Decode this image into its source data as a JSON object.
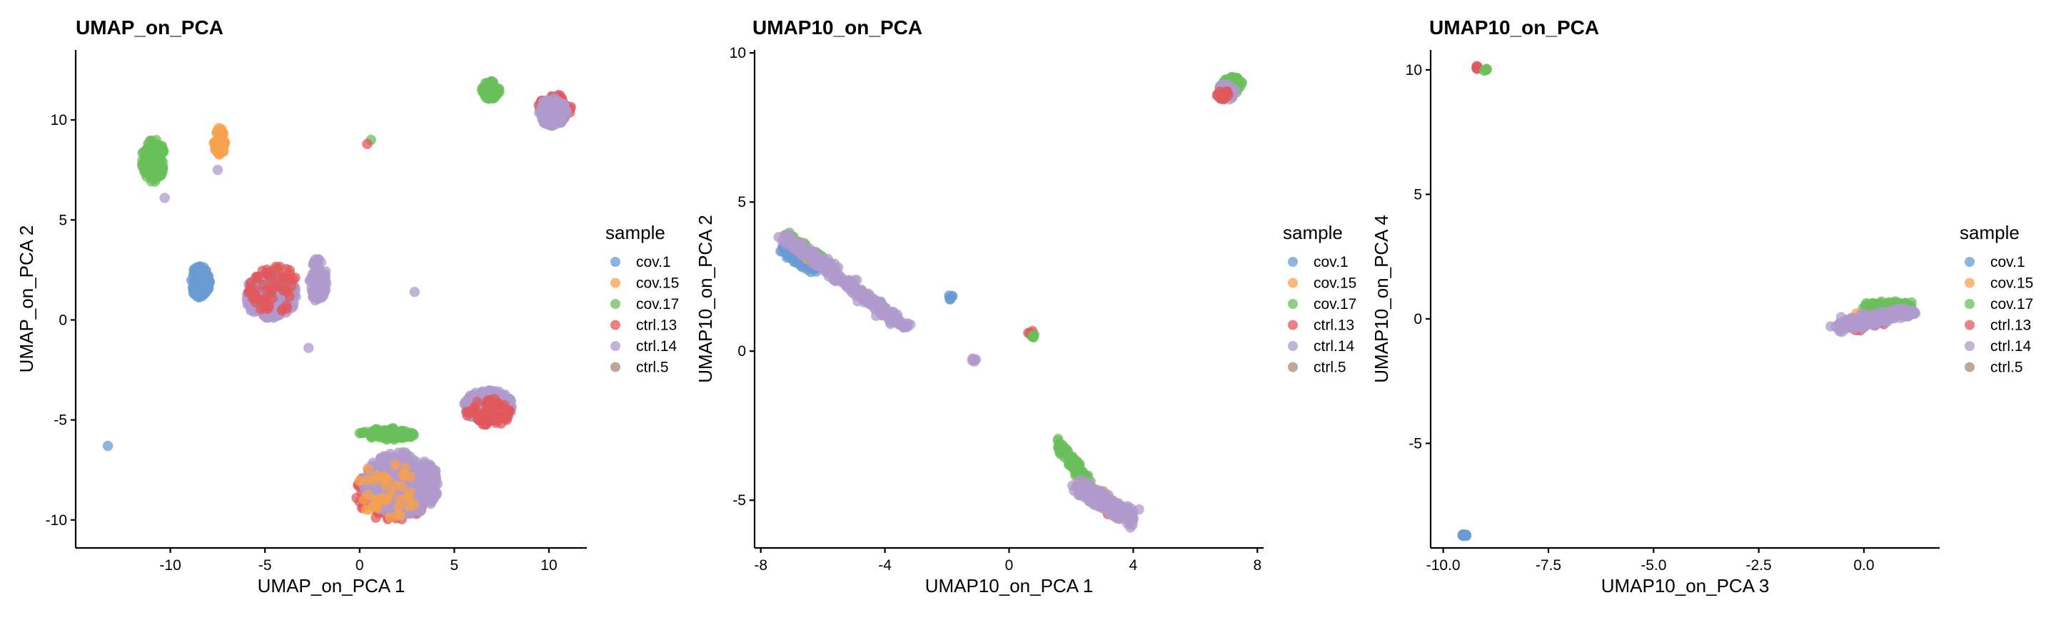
{
  "legend": {
    "title": "sample",
    "entries": [
      {
        "label": "cov.1",
        "color": "#6a9bd1"
      },
      {
        "label": "cov.15",
        "color": "#f7a24f"
      },
      {
        "label": "cov.17",
        "color": "#69bf5a"
      },
      {
        "label": "ctrl.13",
        "color": "#e0585b"
      },
      {
        "label": "ctrl.14",
        "color": "#b09acc"
      },
      {
        "label": "ctrl.5",
        "color": "#a98a74"
      }
    ]
  },
  "chart_data": [
    {
      "type": "scatter",
      "title": "UMAP_on_PCA",
      "xlabel": "UMAP_on_PCA 1",
      "ylabel": "UMAP_on_PCA 2",
      "xlim": [
        -15,
        12
      ],
      "ylim": [
        -11.4,
        13.5
      ],
      "xticks": [
        -10,
        -5,
        0,
        5,
        10
      ],
      "yticks": [
        -10,
        -5,
        0,
        5,
        10
      ],
      "xtick_labels": [
        "-10",
        "-5",
        "0",
        "5",
        "10"
      ],
      "ytick_labels": [
        "-10",
        "-5",
        "0",
        "5",
        "10"
      ],
      "grid": false,
      "legend_position": "right",
      "clusters": [
        {
          "sample": "cov.17",
          "cx": -10.9,
          "cy": 8.0,
          "rx": 0.6,
          "ry": 1.1,
          "n": 150
        },
        {
          "sample": "cov.15",
          "cx": -7.4,
          "cy": 8.9,
          "rx": 0.3,
          "ry": 0.7,
          "n": 60
        },
        {
          "sample": "cov.1",
          "cx": -8.4,
          "cy": 1.9,
          "rx": 0.55,
          "ry": 0.8,
          "n": 120
        },
        {
          "sample": "ctrl.14",
          "cx": -4.7,
          "cy": 1.2,
          "rx": 1.4,
          "ry": 1.1,
          "n": 260
        },
        {
          "sample": "ctrl.14",
          "cx": -2.2,
          "cy": 2.0,
          "rx": 0.45,
          "ry": 1.1,
          "n": 80
        },
        {
          "sample": "ctrl.13",
          "cx": -4.5,
          "cy": 1.5,
          "rx": 1.4,
          "ry": 1.2,
          "n": 60
        },
        {
          "sample": "cov.17",
          "cx": 6.9,
          "cy": 11.5,
          "rx": 0.5,
          "ry": 0.45,
          "n": 60
        },
        {
          "sample": "ctrl.13",
          "cx": 10.3,
          "cy": 10.6,
          "rx": 0.9,
          "ry": 0.7,
          "n": 80
        },
        {
          "sample": "ctrl.14",
          "cx": 10.2,
          "cy": 10.4,
          "rx": 0.8,
          "ry": 0.7,
          "n": 140
        },
        {
          "sample": "cov.17",
          "cx": 1.4,
          "cy": -5.7,
          "rx": 1.5,
          "ry": 0.3,
          "n": 80
        },
        {
          "sample": "ctrl.13",
          "cx": 1.8,
          "cy": -8.6,
          "rx": 2.0,
          "ry": 1.5,
          "n": 180
        },
        {
          "sample": "ctrl.14",
          "cx": 2.2,
          "cy": -8.2,
          "rx": 2.0,
          "ry": 1.6,
          "n": 380
        },
        {
          "sample": "cov.15",
          "cx": 1.5,
          "cy": -8.5,
          "rx": 1.7,
          "ry": 1.4,
          "n": 40
        },
        {
          "sample": "ctrl.14",
          "cx": 6.8,
          "cy": -4.3,
          "rx": 1.3,
          "ry": 0.8,
          "n": 220
        },
        {
          "sample": "ctrl.13",
          "cx": 6.8,
          "cy": -4.6,
          "rx": 1.2,
          "ry": 0.7,
          "n": 60
        }
      ],
      "singles": [
        {
          "sample": "cov.1",
          "x": -13.3,
          "y": -6.3
        },
        {
          "sample": "cov.17",
          "x": 0.6,
          "y": 9.0
        },
        {
          "sample": "ctrl.13",
          "x": 0.4,
          "y": 8.8
        },
        {
          "sample": "ctrl.14",
          "x": 2.9,
          "y": 1.4
        },
        {
          "sample": "ctrl.14",
          "x": -2.7,
          "y": -1.4
        },
        {
          "sample": "ctrl.14",
          "x": -10.3,
          "y": 6.1
        },
        {
          "sample": "ctrl.14",
          "x": -7.5,
          "y": 7.5
        }
      ]
    },
    {
      "type": "scatter",
      "title": "UMAP10_on_PCA",
      "xlabel": "UMAP10_on_PCA 1",
      "ylabel": "UMAP10_on_PCA 2",
      "xlim": [
        -8.2,
        8.2
      ],
      "ylim": [
        -6.6,
        10.1
      ],
      "xticks": [
        -8,
        -4,
        0,
        4,
        8
      ],
      "yticks": [
        -5,
        0,
        5,
        10
      ],
      "xtick_labels": [
        "-8",
        "-4",
        "0",
        "4",
        "8"
      ],
      "ytick_labels": [
        "-5",
        "0",
        "5",
        "10"
      ],
      "grid": false,
      "legend_position": "right",
      "clusters": [
        {
          "sample": "cov.17",
          "cx": 7.2,
          "cy": 8.9,
          "rx": 0.35,
          "ry": 0.3,
          "n": 60
        },
        {
          "sample": "ctrl.14",
          "cx": 7.0,
          "cy": 8.7,
          "rx": 0.3,
          "ry": 0.3,
          "n": 40
        },
        {
          "sample": "ctrl.13",
          "cx": 6.9,
          "cy": 8.6,
          "rx": 0.2,
          "ry": 0.15,
          "n": 20
        },
        {
          "sample": "cov.1",
          "cx": -1.9,
          "cy": 1.8,
          "rx": 0.1,
          "ry": 0.08,
          "n": 6
        },
        {
          "sample": "ctrl.14",
          "cx": -1.1,
          "cy": -0.3,
          "rx": 0.1,
          "ry": 0.08,
          "n": 6
        },
        {
          "sample": "ctrl.13",
          "cx": 0.7,
          "cy": 0.6,
          "rx": 0.1,
          "ry": 0.1,
          "n": 6
        },
        {
          "sample": "cov.17",
          "cx": 0.8,
          "cy": 0.5,
          "rx": 0.1,
          "ry": 0.1,
          "n": 4
        }
      ],
      "lines": [
        {
          "sample": "cov.1",
          "x0": -7.3,
          "y0": 3.4,
          "x1": -6.2,
          "y1": 2.7,
          "spread": 0.12,
          "n": 60
        },
        {
          "sample": "cov.17",
          "x0": -7.2,
          "y0": 3.9,
          "x1": -6.0,
          "y1": 3.0,
          "spread": 0.12,
          "n": 60
        },
        {
          "sample": "cov.15",
          "x0": -7.0,
          "y0": 3.6,
          "x1": -5.6,
          "y1": 2.7,
          "spread": 0.12,
          "n": 40
        },
        {
          "sample": "ctrl.14",
          "x0": -7.2,
          "y0": 3.8,
          "x1": -3.6,
          "y1": 1.0,
          "spread": 0.15,
          "n": 300
        },
        {
          "sample": "ctrl.14",
          "x0": -3.6,
          "y0": 1.0,
          "x1": -3.2,
          "y1": 0.8,
          "spread": 0.08,
          "n": 10
        },
        {
          "sample": "cov.17",
          "x0": 1.5,
          "y0": -3.0,
          "x1": 2.6,
          "y1": -4.5,
          "spread": 0.12,
          "n": 90
        },
        {
          "sample": "ctrl.13",
          "x0": 2.2,
          "y0": -4.4,
          "x1": 3.4,
          "y1": -5.4,
          "spread": 0.15,
          "n": 40
        },
        {
          "sample": "cov.15",
          "x0": 2.6,
          "y0": -4.7,
          "x1": 3.6,
          "y1": -5.5,
          "spread": 0.15,
          "n": 40
        },
        {
          "sample": "ctrl.14",
          "x0": 2.3,
          "y0": -4.6,
          "x1": 4.0,
          "y1": -5.6,
          "spread": 0.2,
          "n": 300
        }
      ],
      "singles": [
        {
          "sample": "ctrl.14",
          "x": -3.4,
          "y": 0.8
        }
      ]
    },
    {
      "type": "scatter",
      "title": "UMAP10_on_PCA",
      "xlabel": "UMAP10_on_PCA 3",
      "ylabel": "UMAP10_on_PCA 4",
      "xlim": [
        -10.3,
        1.8
      ],
      "ylim": [
        -9.2,
        10.8
      ],
      "xticks": [
        -10,
        -7.5,
        -5,
        -2.5,
        0
      ],
      "yticks": [
        -5,
        0,
        5,
        10
      ],
      "xtick_labels": [
        "-10.0",
        "-7.5",
        "-5.0",
        "-2.5",
        "0.0"
      ],
      "ytick_labels": [
        "-5",
        "0",
        "5",
        "10"
      ],
      "grid": false,
      "legend_position": "right",
      "clusters": [
        {
          "sample": "ctrl.13",
          "cx": -9.2,
          "cy": 10.1,
          "rx": 0.05,
          "ry": 0.06,
          "n": 5
        },
        {
          "sample": "cov.17",
          "cx": -9.0,
          "cy": 10.0,
          "rx": 0.05,
          "ry": 0.05,
          "n": 5
        },
        {
          "sample": "cov.1",
          "cx": -9.5,
          "cy": -8.7,
          "rx": 0.06,
          "ry": 0.06,
          "n": 8
        }
      ],
      "lines": [
        {
          "sample": "ctrl.13",
          "x0": -0.3,
          "y0": -0.35,
          "x1": 0.4,
          "y1": -0.1,
          "spread": 0.12,
          "n": 40
        },
        {
          "sample": "cov.15",
          "x0": 0.0,
          "y0": 0.1,
          "x1": 1.1,
          "y1": 0.5,
          "spread": 0.12,
          "n": 40
        },
        {
          "sample": "cov.17",
          "x0": 0.0,
          "y0": 0.5,
          "x1": 1.1,
          "y1": 0.6,
          "spread": 0.1,
          "n": 60
        },
        {
          "sample": "ctrl.14",
          "x0": -0.6,
          "y0": -0.3,
          "x1": 1.1,
          "y1": 0.35,
          "spread": 0.17,
          "n": 260
        }
      ],
      "singles": []
    }
  ]
}
